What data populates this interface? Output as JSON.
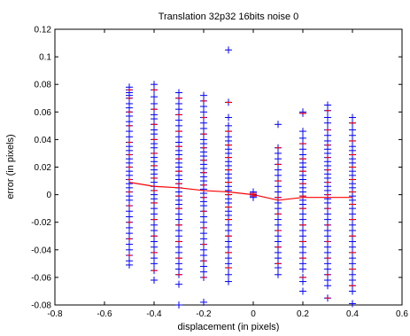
{
  "chart_data": {
    "type": "scatter",
    "title": "Translation 32p32 16bits noise 0",
    "xlabel": "displacement (in pixels)",
    "ylabel": "error (in pixels)",
    "xlim": [
      -0.8,
      0.6
    ],
    "ylim": [
      -0.08,
      0.12
    ],
    "xticks": [
      -0.8,
      -0.6,
      -0.4,
      -0.2,
      0,
      0.2,
      0.4,
      0.6
    ],
    "xtick_labels": [
      "-0.8",
      "-0.6",
      "-0.4",
      "-0.2",
      "0",
      "0.2",
      "0.4",
      "0.6"
    ],
    "yticks": [
      -0.08,
      -0.06,
      -0.04,
      -0.02,
      0,
      0.02,
      0.04,
      0.06,
      0.08,
      0.1,
      0.12
    ],
    "ytick_labels": [
      "-0.08",
      "-0.06",
      "-0.04",
      "-0.02",
      "0",
      "0.02",
      "0.04",
      "0.06",
      "0.08",
      "0.1",
      "0.12"
    ],
    "grid": false,
    "legend": "none",
    "series": [
      {
        "marker": "+",
        "color": "#0000ff",
        "columns": [
          {
            "x": -0.5,
            "y": [
              0.078,
              0.076,
              0.074,
              0.072,
              0.07,
              0.066,
              0.063,
              0.06,
              0.057,
              0.053,
              0.05,
              0.046,
              0.042,
              0.038,
              0.035,
              0.032,
              0.029,
              0.026,
              0.023,
              0.02,
              0.017,
              0.014,
              0.011,
              0.008,
              0.005,
              0.002,
              -0.001,
              -0.004,
              -0.008,
              -0.012,
              -0.016,
              -0.02,
              -0.024,
              -0.028,
              -0.032,
              -0.036,
              -0.04,
              -0.044,
              -0.048,
              -0.051
            ]
          },
          {
            "x": -0.4,
            "y": [
              0.08,
              0.076,
              0.071,
              0.066,
              0.062,
              0.058,
              0.055,
              0.051,
              0.047,
              0.044,
              0.04,
              0.037,
              0.034,
              0.03,
              0.027,
              0.024,
              0.021,
              0.018,
              0.015,
              0.012,
              0.009,
              0.006,
              0.003,
              0.0,
              -0.003,
              -0.006,
              -0.01,
              -0.014,
              -0.018,
              -0.022,
              -0.026,
              -0.03,
              -0.034,
              -0.038,
              -0.042,
              -0.046,
              -0.05,
              -0.055,
              -0.062
            ]
          },
          {
            "x": -0.3,
            "y": [
              0.074,
              0.07,
              0.066,
              0.062,
              0.058,
              0.054,
              0.05,
              0.046,
              0.042,
              0.038,
              0.035,
              0.032,
              0.029,
              0.026,
              0.023,
              0.02,
              0.017,
              0.014,
              0.011,
              0.008,
              0.005,
              0.002,
              -0.001,
              -0.004,
              -0.007,
              -0.01,
              -0.014,
              -0.018,
              -0.022,
              -0.026,
              -0.03,
              -0.034,
              -0.038,
              -0.042,
              -0.046,
              -0.05,
              -0.054,
              -0.058,
              -0.065,
              -0.08
            ]
          },
          {
            "x": -0.2,
            "y": [
              0.072,
              0.068,
              0.064,
              0.06,
              0.056,
              0.052,
              0.048,
              0.044,
              0.04,
              0.037,
              0.034,
              0.031,
              0.028,
              0.025,
              0.022,
              0.019,
              0.016,
              0.013,
              0.01,
              0.007,
              0.004,
              0.001,
              -0.002,
              -0.005,
              -0.008,
              -0.012,
              -0.016,
              -0.02,
              -0.024,
              -0.028,
              -0.032,
              -0.036,
              -0.04,
              -0.044,
              -0.048,
              -0.052,
              -0.056,
              -0.06,
              -0.078
            ]
          },
          {
            "x": -0.1,
            "y": [
              0.105,
              0.067,
              0.056,
              0.05,
              0.046,
              0.042,
              0.039,
              0.036,
              0.033,
              0.03,
              0.027,
              0.024,
              0.021,
              0.018,
              0.015,
              0.012,
              0.009,
              0.006,
              0.003,
              0.0,
              -0.003,
              -0.006,
              -0.009,
              -0.012,
              -0.015,
              -0.018,
              -0.022,
              -0.026,
              -0.03,
              -0.034,
              -0.038,
              -0.042,
              -0.046,
              -0.05,
              -0.053,
              -0.058,
              -0.063
            ]
          },
          {
            "x": 0.0,
            "y": [
              0.002,
              0.001,
              0.0,
              0.0,
              -0.001,
              -0.002
            ]
          },
          {
            "x": 0.1,
            "y": [
              0.051,
              0.034,
              0.03,
              0.026,
              0.022,
              0.018,
              0.014,
              0.01,
              0.006,
              0.002,
              -0.002,
              -0.006,
              -0.01,
              -0.014,
              -0.018,
              -0.022,
              -0.026,
              -0.03,
              -0.034,
              -0.038,
              -0.042,
              -0.046,
              -0.05,
              -0.053,
              -0.058
            ]
          },
          {
            "x": 0.2,
            "y": [
              0.06,
              0.059,
              0.046,
              0.041,
              0.037,
              0.033,
              0.029,
              0.026,
              0.023,
              0.02,
              0.017,
              0.014,
              0.011,
              0.008,
              0.005,
              0.002,
              -0.001,
              -0.004,
              -0.007,
              -0.01,
              -0.014,
              -0.018,
              -0.022,
              -0.026,
              -0.03,
              -0.034,
              -0.038,
              -0.042,
              -0.046,
              -0.05,
              -0.054,
              -0.06,
              -0.063,
              -0.07
            ]
          },
          {
            "x": 0.3,
            "y": [
              0.065,
              0.061,
              0.056,
              0.052,
              0.047,
              0.043,
              0.039,
              0.036,
              0.033,
              0.03,
              0.027,
              0.024,
              0.021,
              0.018,
              0.015,
              0.012,
              0.009,
              0.006,
              0.003,
              0.0,
              -0.003,
              -0.006,
              -0.01,
              -0.014,
              -0.018,
              -0.022,
              -0.026,
              -0.03,
              -0.034,
              -0.038,
              -0.042,
              -0.046,
              -0.05,
              -0.054,
              -0.058,
              -0.062,
              -0.066,
              -0.075
            ]
          },
          {
            "x": 0.4,
            "y": [
              0.056,
              0.052,
              0.047,
              0.043,
              0.039,
              0.035,
              0.032,
              0.029,
              0.026,
              0.023,
              0.02,
              0.017,
              0.014,
              0.011,
              0.008,
              0.005,
              0.002,
              -0.001,
              -0.004,
              -0.007,
              -0.01,
              -0.014,
              -0.018,
              -0.022,
              -0.026,
              -0.03,
              -0.034,
              -0.038,
              -0.042,
              -0.046,
              -0.05,
              -0.054,
              -0.058,
              -0.062,
              -0.066,
              -0.07,
              -0.079
            ]
          }
        ]
      },
      {
        "marker": "none",
        "color": "#ff0000",
        "x": [
          -0.5,
          -0.4,
          -0.3,
          -0.2,
          -0.1,
          0.0,
          0.1,
          0.2,
          0.3,
          0.4
        ],
        "y": [
          0.009,
          0.006,
          0.005,
          0.003,
          0.002,
          0.0,
          -0.004,
          -0.002,
          -0.002,
          -0.002
        ]
      }
    ]
  }
}
